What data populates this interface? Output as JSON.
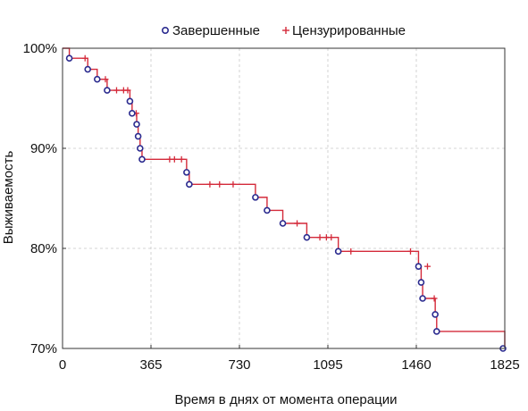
{
  "chart_data": {
    "type": "line",
    "title": "",
    "xlabel": "Время в днях от момента операции",
    "ylabel": "Выживаемость",
    "xlim": [
      0,
      1825
    ],
    "ylim": [
      70,
      100
    ],
    "x_ticks": [
      0,
      365,
      730,
      1095,
      1460,
      1825
    ],
    "x_tick_labels": [
      "0",
      "365",
      "730",
      "1095",
      "1460",
      "1825"
    ],
    "y_ticks": [
      70,
      80,
      90,
      100
    ],
    "y_tick_labels": [
      "70%",
      "80%",
      "90%",
      "100%"
    ],
    "grid": true,
    "legend_position": "top",
    "colors": {
      "curve": "#d42a3a",
      "completed": "#2b2b8f",
      "censored": "#d42a3a"
    },
    "series": [
      {
        "name": "Завершенные",
        "marker": "open-circle",
        "x": [
          28,
          104,
          143,
          184,
          278,
          287,
          306,
          312,
          320,
          328,
          512,
          523,
          796,
          844,
          909,
          1008,
          1138,
          1469,
          1480,
          1486,
          1538,
          1544,
          1828
        ],
        "y": [
          99.0,
          97.9,
          96.9,
          95.8,
          94.7,
          93.5,
          92.4,
          91.2,
          90.0,
          88.9,
          87.6,
          86.4,
          85.1,
          83.8,
          82.5,
          81.1,
          79.7,
          78.2,
          76.6,
          75.0,
          73.4,
          71.7,
          70.0
        ]
      },
      {
        "name": "Цензурированные",
        "marker": "plus",
        "x": [
          93,
          177,
          223,
          252,
          269,
          304,
          442,
          462,
          491,
          608,
          648,
          704,
          968,
          1062,
          1089,
          1109,
          1190,
          1436,
          1506,
          1534
        ],
        "y": [
          99.0,
          96.9,
          95.8,
          95.8,
          95.8,
          93.5,
          88.9,
          88.9,
          88.9,
          86.4,
          86.4,
          86.4,
          82.5,
          81.1,
          81.1,
          81.1,
          79.7,
          79.7,
          78.2,
          75.0
        ]
      }
    ]
  }
}
